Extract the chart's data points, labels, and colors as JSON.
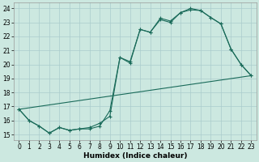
{
  "xlabel": "Humidex (Indice chaleur)",
  "xlim_min": -0.5,
  "xlim_max": 23.5,
  "ylim_min": 14.6,
  "ylim_max": 24.4,
  "xticks": [
    0,
    1,
    2,
    3,
    4,
    5,
    6,
    7,
    8,
    9,
    10,
    11,
    12,
    13,
    14,
    15,
    16,
    17,
    18,
    19,
    20,
    21,
    22,
    23
  ],
  "yticks": [
    15,
    16,
    17,
    18,
    19,
    20,
    21,
    22,
    23,
    24
  ],
  "bg_color": "#cce8e0",
  "grid_color": "#aacccc",
  "line_color": "#1a6b5a",
  "line1_x": [
    0,
    1,
    2,
    3,
    4,
    5,
    6,
    7,
    8,
    9,
    10,
    11,
    12,
    13,
    14,
    15,
    16,
    17,
    18,
    19,
    20,
    21,
    22,
    23
  ],
  "line1_y": [
    16.8,
    16.0,
    15.6,
    15.1,
    15.5,
    15.3,
    15.4,
    15.4,
    15.6,
    16.7,
    20.5,
    20.2,
    22.5,
    22.3,
    23.2,
    23.0,
    23.7,
    24.0,
    23.85,
    23.35,
    22.9,
    21.1,
    20.0,
    19.2
  ],
  "line2_x": [
    0,
    1,
    2,
    3,
    4,
    5,
    6,
    7,
    8,
    9,
    10,
    11,
    12,
    13,
    14,
    15,
    16,
    17,
    18,
    19,
    20,
    21,
    22,
    23
  ],
  "line2_y": [
    16.8,
    16.0,
    15.6,
    15.1,
    15.5,
    15.3,
    15.4,
    15.5,
    15.8,
    16.3,
    20.5,
    20.1,
    22.5,
    22.3,
    23.3,
    23.1,
    23.7,
    23.9,
    23.85,
    23.35,
    22.9,
    21.1,
    20.0,
    19.2
  ],
  "line3_x": [
    0,
    23
  ],
  "line3_y": [
    16.8,
    19.2
  ],
  "tick_fontsize": 5.5,
  "xlabel_fontsize": 6.5
}
